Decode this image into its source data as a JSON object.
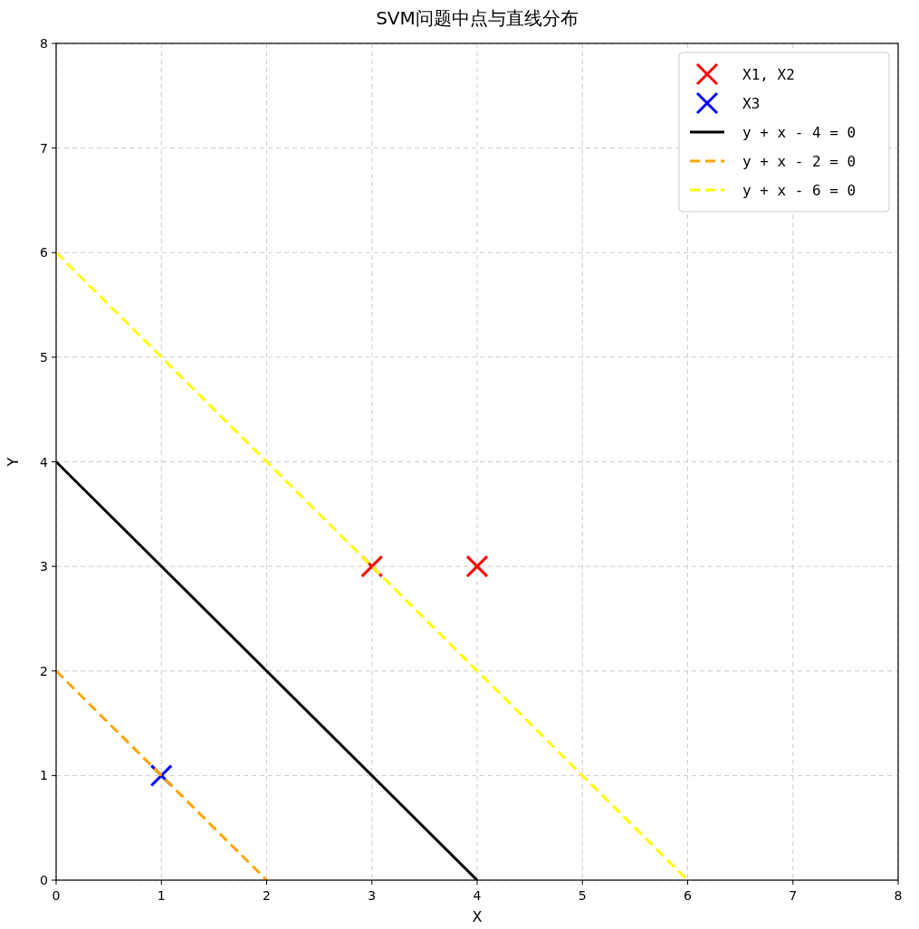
{
  "chart_data": {
    "type": "scatter",
    "title": "SVM问题中点与直线分布",
    "xlabel": "X",
    "ylabel": "Y",
    "xlim": [
      0,
      8
    ],
    "ylim": [
      0,
      8
    ],
    "xticks": [
      0,
      1,
      2,
      3,
      4,
      5,
      6,
      7,
      8
    ],
    "yticks": [
      0,
      1,
      2,
      3,
      4,
      5,
      6,
      7,
      8
    ],
    "grid": true,
    "legend": "top right",
    "series": [
      {
        "name": "X1, X2",
        "marker": "cross",
        "color": "#ff0000",
        "x": [
          3,
          4
        ],
        "values": [
          3,
          3
        ]
      },
      {
        "name": "X3",
        "marker": "cross",
        "color": "#0000ff",
        "x": [
          1
        ],
        "values": [
          1
        ]
      },
      {
        "name": "y + x - 4 = 0",
        "type": "line",
        "line_style": "solid",
        "color": "#000000",
        "x": [
          0,
          4
        ],
        "values": [
          4,
          0
        ]
      },
      {
        "name": "y + x - 2 = 0",
        "type": "line",
        "line_style": "dashed",
        "color": "#ffa500",
        "x": [
          0,
          2
        ],
        "values": [
          2,
          0
        ]
      },
      {
        "name": "y + x - 6 = 0",
        "type": "line",
        "line_style": "dashed",
        "color": "#ffff00",
        "x": [
          0,
          6
        ],
        "values": [
          6,
          0
        ]
      }
    ]
  }
}
